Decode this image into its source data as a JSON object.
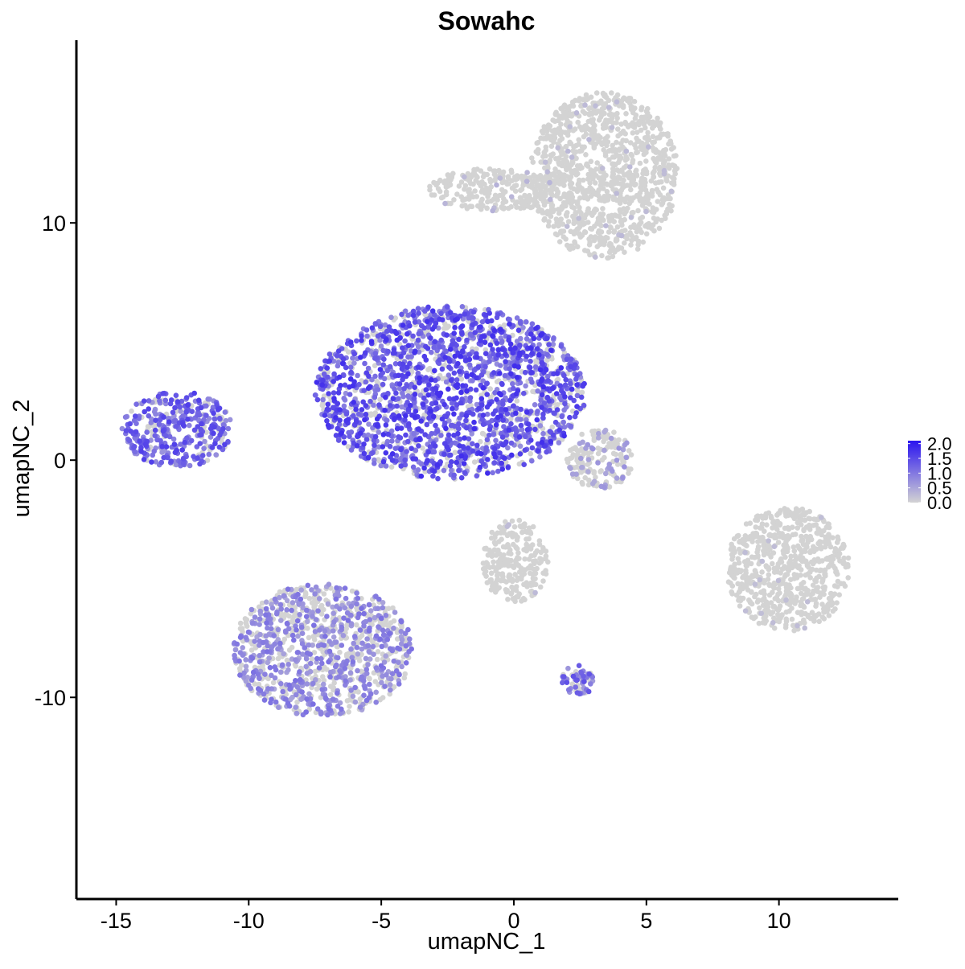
{
  "chart_data": {
    "type": "scatter",
    "title": "Sowahc",
    "xlabel": "umapNC_1",
    "ylabel": "umapNC_2",
    "xlim": [
      -16.5,
      14.5
    ],
    "ylim": [
      -18.5,
      17.7
    ],
    "x_ticks": [
      -15,
      -10,
      -5,
      0,
      5,
      10
    ],
    "y_ticks": [
      -10,
      0,
      10
    ],
    "x_tick_labels": [
      "-15",
      "-10",
      "-5",
      "0",
      "5",
      "10"
    ],
    "y_tick_labels": [
      "-10",
      "0",
      "10"
    ],
    "grid": false,
    "legend": {
      "placement": "right",
      "title": "",
      "color_low": "#d3d3d3",
      "color_high": "#2a14f0",
      "range": [
        0,
        2.1
      ],
      "ticks": [
        0.0,
        0.5,
        1.0,
        1.5,
        2.0
      ],
      "tick_labels": [
        "0.0",
        "0.5",
        "1.0",
        "1.5",
        "2.0"
      ]
    },
    "clusters": [
      {
        "name": "top-right cluster",
        "x": [
          0.6,
          6.2
        ],
        "y": [
          8.5,
          15.5
        ],
        "expression_mean": 0.05,
        "share_expressing": 0.03
      },
      {
        "name": "top bridge",
        "x": [
          -3.3,
          1.8
        ],
        "y": [
          10.5,
          12.3
        ],
        "expression_mean": 0.1,
        "share_expressing": 0.05
      },
      {
        "name": "central branching cluster",
        "x": [
          -7.5,
          2.7
        ],
        "y": [
          -0.8,
          6.5
        ],
        "expression_mean": 0.9,
        "share_expressing": 0.75
      },
      {
        "name": "left cluster",
        "x": [
          -14.8,
          -10.6
        ],
        "y": [
          -0.3,
          2.9
        ],
        "expression_mean": 0.8,
        "share_expressing": 0.8
      },
      {
        "name": "bottom-left cluster",
        "x": [
          -10.6,
          -3.8
        ],
        "y": [
          -10.8,
          -5.2
        ],
        "expression_mean": 0.5,
        "share_expressing": 0.5
      },
      {
        "name": "small center-right cluster",
        "x": [
          2.0,
          4.5
        ],
        "y": [
          -1.2,
          1.3
        ],
        "expression_mean": 0.3,
        "share_expressing": 0.25
      },
      {
        "name": "right cluster",
        "x": [
          8.0,
          12.7
        ],
        "y": [
          -7.2,
          -2.0
        ],
        "expression_mean": 0.03,
        "share_expressing": 0.02
      },
      {
        "name": "lower middle cluster",
        "x": [
          -1.2,
          1.3
        ],
        "y": [
          -6.0,
          -2.5
        ],
        "expression_mean": 0.06,
        "share_expressing": 0.04
      },
      {
        "name": "bottom small cluster",
        "x": [
          1.8,
          3.0
        ],
        "y": [
          -10.0,
          -8.6
        ],
        "expression_mean": 0.7,
        "share_expressing": 0.6
      }
    ]
  }
}
